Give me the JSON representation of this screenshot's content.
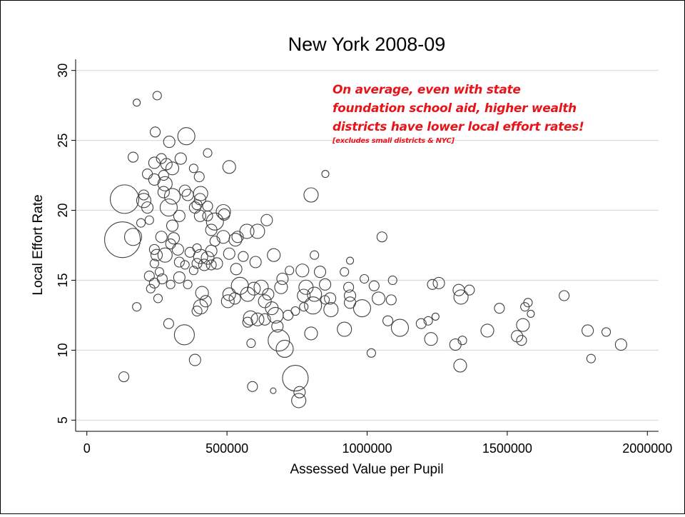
{
  "chart_data": {
    "type": "scatter",
    "title": "New York 2008-09",
    "xlabel": "Assessed Value per Pupil",
    "ylabel": "Local Effort Rate",
    "xlim": [
      -40000,
      2040000
    ],
    "ylim": [
      4.2,
      30.8
    ],
    "xticks": [
      0,
      500000,
      1000000,
      1500000,
      2000000
    ],
    "xtick_labels": [
      "0",
      "500000",
      "1000000",
      "1500000",
      "2000000"
    ],
    "yticks": [
      5,
      10,
      15,
      20,
      25,
      30
    ],
    "ytick_labels": [
      "5",
      "10",
      "15",
      "20",
      "25",
      "30"
    ],
    "grid": "horizontal",
    "marker": "hollow-circle-weighted",
    "marker_color": "#404040",
    "annotation": {
      "lines": [
        "On average, even with state",
        "foundation school aid, higher wealth",
        "districts have lower local effort rates!"
      ],
      "note": "[excludes small districts & NYC]",
      "color": "#e8141a"
    },
    "points_fields": [
      "x",
      "y",
      "weight"
    ],
    "points": [
      [
        134500,
        20.8,
        20
      ],
      [
        127000,
        17.9,
        25
      ],
      [
        165000,
        18.1,
        12
      ],
      [
        203000,
        20.7,
        10
      ],
      [
        178000,
        27.7,
        5
      ],
      [
        251000,
        28.2,
        6
      ],
      [
        244000,
        25.6,
        7
      ],
      [
        165000,
        23.8,
        7
      ],
      [
        294000,
        24.9,
        8
      ],
      [
        355000,
        25.3,
        12
      ],
      [
        431000,
        24.1,
        6
      ],
      [
        508000,
        23.1,
        9
      ],
      [
        851000,
        22.6,
        5
      ],
      [
        800000,
        21.1,
        10
      ],
      [
        132000,
        8.1,
        7
      ],
      [
        178000,
        13.1,
        6
      ],
      [
        348000,
        11.1,
        14
      ],
      [
        292000,
        11.9,
        7
      ],
      [
        386000,
        9.3,
        8
      ],
      [
        591000,
        7.4,
        7
      ],
      [
        665000,
        7.1,
        4
      ],
      [
        744000,
        8.0,
        18
      ],
      [
        756000,
        6.4,
        10
      ],
      [
        759000,
        7.0,
        8
      ],
      [
        685000,
        10.7,
        15
      ],
      [
        706000,
        10.1,
        12
      ],
      [
        586000,
        10.5,
        6
      ],
      [
        800000,
        11.2,
        9
      ],
      [
        919000,
        11.5,
        10
      ],
      [
        1015000,
        9.8,
        6
      ],
      [
        1117000,
        11.6,
        12
      ],
      [
        982000,
        13.0,
        12
      ],
      [
        1053000,
        18.1,
        7
      ],
      [
        939000,
        16.4,
        5
      ],
      [
        812000,
        16.8,
        6
      ],
      [
        990000,
        15.1,
        6
      ],
      [
        1025000,
        14.6,
        7
      ],
      [
        1041000,
        13.7,
        9
      ],
      [
        1091000,
        15.0,
        6
      ],
      [
        1086000,
        13.6,
        7
      ],
      [
        1074000,
        12.1,
        7
      ],
      [
        1193000,
        11.9,
        7
      ],
      [
        1218000,
        12.1,
        6
      ],
      [
        1244000,
        12.4,
        5
      ],
      [
        1233000,
        14.7,
        7
      ],
      [
        1256000,
        14.8,
        8
      ],
      [
        1228000,
        10.8,
        9
      ],
      [
        1315000,
        10.4,
        8
      ],
      [
        1340000,
        10.7,
        6
      ],
      [
        1332000,
        8.9,
        9
      ],
      [
        1327000,
        14.3,
        8
      ],
      [
        1335000,
        13.8,
        10
      ],
      [
        1365000,
        14.3,
        7
      ],
      [
        1429000,
        11.4,
        9
      ],
      [
        1472000,
        13.0,
        7
      ],
      [
        1535000,
        11.0,
        8
      ],
      [
        1551000,
        10.7,
        7
      ],
      [
        1556000,
        11.8,
        9
      ],
      [
        1563000,
        13.1,
        6
      ],
      [
        1574000,
        13.4,
        6
      ],
      [
        1584000,
        12.6,
        5
      ],
      [
        1703000,
        13.9,
        7
      ],
      [
        1787000,
        11.4,
        8
      ],
      [
        1799000,
        9.4,
        6
      ],
      [
        1853000,
        11.3,
        6
      ],
      [
        1906000,
        10.4,
        8
      ],
      [
        487000,
        19.9,
        10
      ],
      [
        490000,
        19.7,
        8
      ],
      [
        538000,
        18.1,
        8
      ],
      [
        571000,
        18.5,
        10
      ],
      [
        609000,
        18.5,
        10
      ],
      [
        642000,
        19.3,
        8
      ],
      [
        667000,
        16.8,
        9
      ],
      [
        602000,
        16.3,
        8
      ],
      [
        558000,
        16.7,
        7
      ],
      [
        508000,
        16.9,
        8
      ],
      [
        487000,
        18.1,
        9
      ],
      [
        530000,
        17.9,
        9
      ],
      [
        457000,
        17.8,
        7
      ],
      [
        444000,
        17.1,
        8
      ],
      [
        533000,
        15.8,
        8
      ],
      [
        546000,
        14.6,
        12
      ],
      [
        574000,
        14.0,
        10
      ],
      [
        596000,
        14.4,
        9
      ],
      [
        622000,
        14.5,
        10
      ],
      [
        635000,
        13.5,
        9
      ],
      [
        647000,
        14.0,
        8
      ],
      [
        660000,
        13.0,
        9
      ],
      [
        673000,
        12.5,
        11
      ],
      [
        680000,
        11.7,
        8
      ],
      [
        584000,
        12.3,
        10
      ],
      [
        609000,
        12.2,
        9
      ],
      [
        635000,
        12.2,
        8
      ],
      [
        574000,
        12.0,
        7
      ],
      [
        508000,
        14.0,
        9
      ],
      [
        503000,
        13.5,
        9
      ],
      [
        528000,
        13.7,
        8
      ],
      [
        698000,
        15.1,
        8
      ],
      [
        693000,
        14.5,
        9
      ],
      [
        723000,
        15.7,
        6
      ],
      [
        769000,
        15.7,
        9
      ],
      [
        782000,
        14.5,
        10
      ],
      [
        774000,
        13.9,
        9
      ],
      [
        807000,
        13.2,
        12
      ],
      [
        812000,
        14.0,
        10
      ],
      [
        832000,
        15.6,
        8
      ],
      [
        850000,
        14.7,
        8
      ],
      [
        871000,
        12.9,
        10
      ],
      [
        868000,
        13.7,
        8
      ],
      [
        850000,
        13.6,
        6
      ],
      [
        919000,
        15.6,
        6
      ],
      [
        934000,
        14.5,
        7
      ],
      [
        939000,
        13.9,
        8
      ],
      [
        939000,
        13.4,
        8
      ],
      [
        718000,
        12.5,
        7
      ],
      [
        744000,
        12.8,
        6
      ],
      [
        774000,
        13.1,
        6
      ],
      [
        241000,
        23.4,
        8
      ],
      [
        266000,
        23.7,
        7
      ],
      [
        284000,
        23.3,
        8
      ],
      [
        305000,
        23.0,
        9
      ],
      [
        335000,
        23.7,
        8
      ],
      [
        381000,
        23.0,
        6
      ],
      [
        401000,
        22.4,
        7
      ],
      [
        279000,
        21.9,
        10
      ],
      [
        274000,
        22.5,
        7
      ],
      [
        216000,
        22.6,
        7
      ],
      [
        241000,
        22.2,
        8
      ],
      [
        274000,
        21.3,
        8
      ],
      [
        305000,
        21.0,
        11
      ],
      [
        350000,
        21.4,
        8
      ],
      [
        360000,
        21.1,
        8
      ],
      [
        393000,
        20.4,
        7
      ],
      [
        406000,
        21.2,
        10
      ],
      [
        404000,
        20.8,
        8
      ],
      [
        431000,
        20.3,
        7
      ],
      [
        457000,
        19.2,
        12
      ],
      [
        444000,
        18.6,
        8
      ],
      [
        431000,
        19.6,
        7
      ],
      [
        404000,
        19.6,
        8
      ],
      [
        386000,
        20.2,
        8
      ],
      [
        292000,
        20.2,
        12
      ],
      [
        330000,
        19.6,
        8
      ],
      [
        305000,
        18.9,
        8
      ],
      [
        266000,
        18.1,
        8
      ],
      [
        310000,
        18.0,
        8
      ],
      [
        299000,
        17.6,
        7
      ],
      [
        241000,
        17.2,
        7
      ],
      [
        249000,
        16.8,
        8
      ],
      [
        279000,
        16.8,
        10
      ],
      [
        325000,
        17.2,
        8
      ],
      [
        368000,
        17.0,
        7
      ],
      [
        393000,
        17.3,
        6
      ],
      [
        406000,
        16.7,
        10
      ],
      [
        431000,
        16.6,
        9
      ],
      [
        419000,
        16.1,
        8
      ],
      [
        444000,
        16.1,
        7
      ],
      [
        464000,
        16.2,
        8
      ],
      [
        393000,
        16.2,
        7
      ],
      [
        350000,
        16.1,
        6
      ],
      [
        330000,
        16.3,
        7
      ],
      [
        381000,
        15.7,
        6
      ],
      [
        241000,
        16.2,
        6
      ],
      [
        223000,
        15.3,
        7
      ],
      [
        259000,
        15.6,
        6
      ],
      [
        241000,
        14.8,
        7
      ],
      [
        228000,
        14.4,
        6
      ],
      [
        269000,
        15.1,
        7
      ],
      [
        299000,
        14.7,
        6
      ],
      [
        411000,
        14.1,
        9
      ],
      [
        424000,
        13.5,
        8
      ],
      [
        406000,
        13.1,
        10
      ],
      [
        393000,
        12.8,
        7
      ],
      [
        254000,
        13.7,
        6
      ],
      [
        223000,
        19.3,
        6
      ],
      [
        193000,
        19.1,
        6
      ],
      [
        203000,
        21.1,
        7
      ],
      [
        216000,
        20.2,
        8
      ],
      [
        330000,
        15.2,
        8
      ],
      [
        360000,
        14.7,
        6
      ]
    ]
  }
}
